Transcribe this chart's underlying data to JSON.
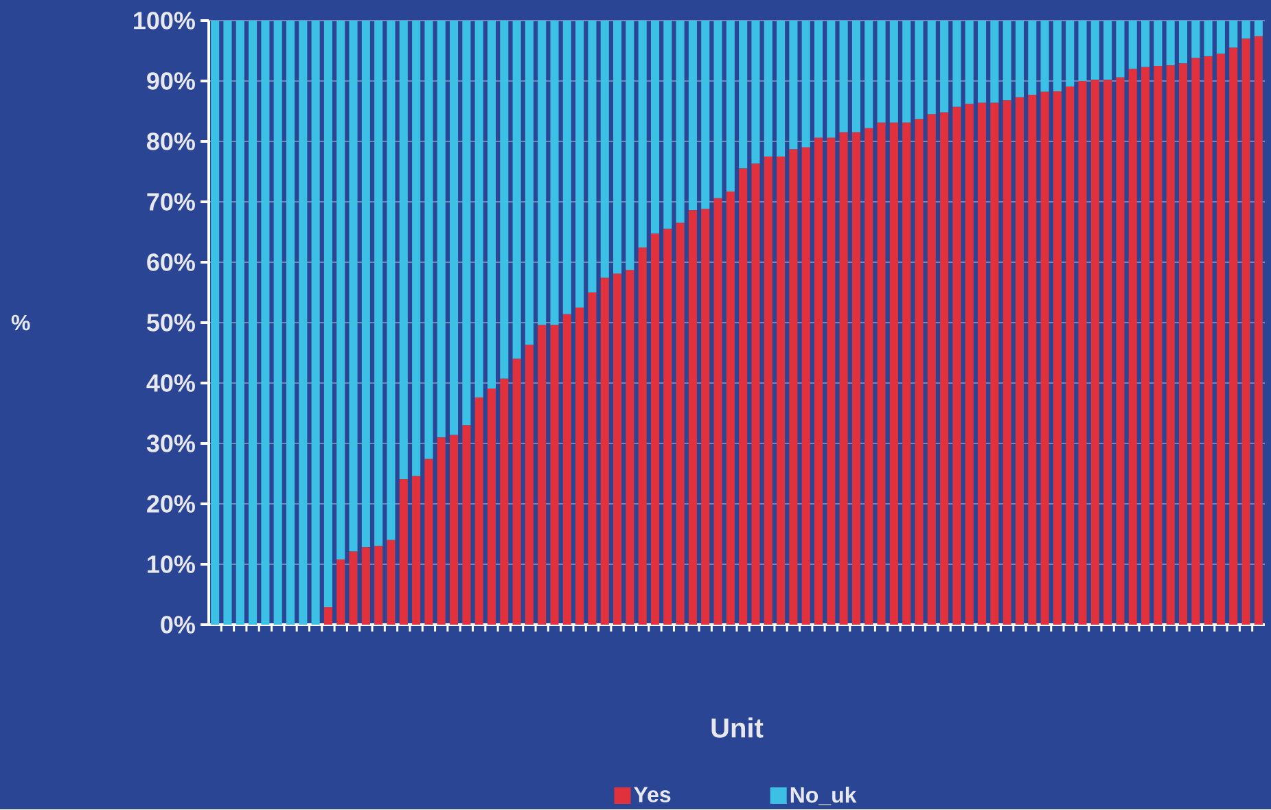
{
  "chart_data": {
    "type": "bar",
    "stacked": true,
    "xlabel": "Unit",
    "ylabel": "%",
    "categories": [
      null,
      null,
      null,
      null,
      null,
      null,
      null,
      null,
      null,
      null,
      null,
      null,
      null,
      null,
      null,
      null,
      null,
      null,
      null,
      null,
      null,
      null,
      null,
      null,
      null,
      null,
      null,
      null,
      null,
      null,
      null,
      null,
      null,
      null,
      null,
      null,
      null,
      null,
      null,
      null,
      null,
      null,
      null,
      null,
      null,
      null,
      null,
      null,
      null,
      null,
      null,
      null,
      null,
      null,
      null,
      null,
      null,
      null,
      null,
      null,
      null,
      null,
      null,
      null,
      null,
      null,
      null,
      null,
      null,
      null,
      null,
      null,
      null,
      null,
      null,
      null,
      null,
      null,
      null,
      null,
      null,
      null,
      null,
      null
    ],
    "series": [
      {
        "name": "Yes",
        "color": "#e0313c",
        "values": [
          0,
          0,
          0,
          0,
          0,
          0,
          0,
          0,
          0,
          2.9,
          10.8,
          12.1,
          12.8,
          13.0,
          14.0,
          24.1,
          24.6,
          27.4,
          31.0,
          31.4,
          33.0,
          37.6,
          39.1,
          40.7,
          44.0,
          46.3,
          49.6,
          49.6,
          51.4,
          52.5,
          55.0,
          57.4,
          58.1,
          58.7,
          62.4,
          64.7,
          65.5,
          66.5,
          68.6,
          68.8,
          70.6,
          71.7,
          75.5,
          76.3,
          77.5,
          77.5,
          78.7,
          79.0,
          80.6,
          80.6,
          81.5,
          81.5,
          82.2,
          83.1,
          83.1,
          83.1,
          83.7,
          84.5,
          84.8,
          85.7,
          86.2,
          86.4,
          86.4,
          86.8,
          87.3,
          87.7,
          88.2,
          88.3,
          89.1,
          90.0,
          90.2,
          90.2,
          90.6,
          92.0,
          92.3,
          92.5,
          92.6,
          92.9,
          93.8,
          94.1,
          94.5,
          95.5,
          97.0,
          97.4
        ]
      },
      {
        "name": "No_uk",
        "color": "#3cc0e6",
        "values": [
          100,
          100,
          100,
          100,
          100,
          100,
          100,
          100,
          100,
          97.1,
          89.2,
          87.9,
          87.2,
          87.0,
          86.0,
          75.9,
          75.4,
          72.6,
          69.0,
          68.6,
          67.0,
          62.4,
          60.9,
          59.3,
          56.0,
          53.7,
          50.4,
          50.4,
          48.6,
          47.5,
          45.0,
          42.6,
          41.9,
          41.3,
          37.6,
          35.3,
          34.5,
          33.5,
          31.4,
          31.2,
          29.4,
          28.3,
          24.5,
          23.7,
          22.5,
          22.5,
          21.3,
          21.0,
          19.4,
          19.4,
          18.5,
          18.5,
          17.8,
          16.9,
          16.9,
          16.9,
          16.3,
          15.5,
          15.2,
          14.3,
          13.8,
          13.6,
          13.6,
          13.2,
          12.7,
          12.3,
          11.8,
          11.7,
          10.9,
          10.0,
          9.8,
          9.8,
          9.4,
          8.0,
          7.7,
          7.5,
          7.4,
          7.1,
          6.2,
          5.9,
          5.5,
          4.5,
          3.0,
          2.6
        ]
      }
    ],
    "ylim": [
      0,
      100
    ],
    "yticks": [
      {
        "value": 0,
        "label": "0%"
      },
      {
        "value": 10,
        "label": "10%"
      },
      {
        "value": 20,
        "label": "20%"
      },
      {
        "value": 30,
        "label": "30%"
      },
      {
        "value": 40,
        "label": "40%"
      },
      {
        "value": 50,
        "label": "50%"
      },
      {
        "value": 60,
        "label": "60%"
      },
      {
        "value": 70,
        "label": "70%"
      },
      {
        "value": 80,
        "label": "80%"
      },
      {
        "value": 90,
        "label": "90%"
      },
      {
        "value": 100,
        "label": "100%"
      }
    ],
    "grid": "y",
    "legend": "bottom"
  }
}
